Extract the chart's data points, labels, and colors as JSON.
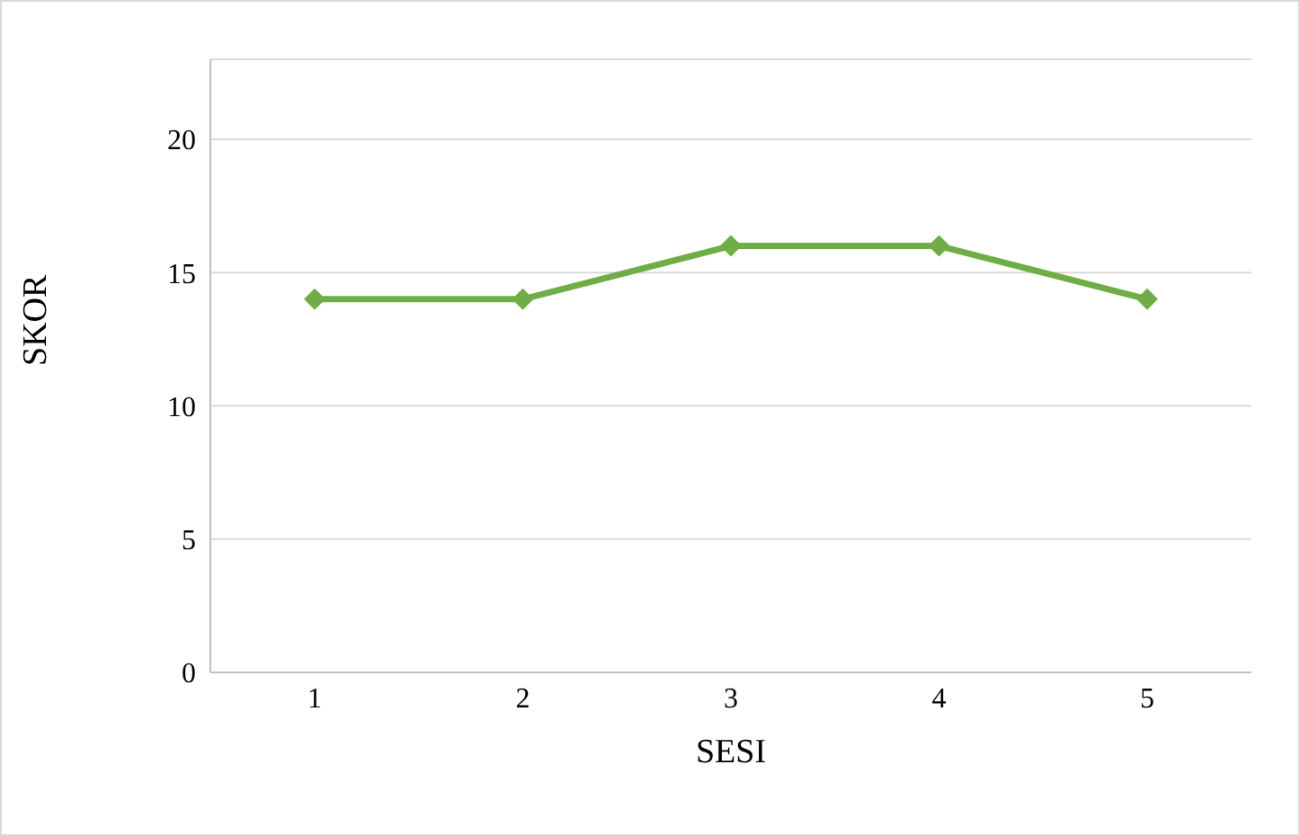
{
  "chart_data": {
    "type": "line",
    "xlabel": "SESI",
    "ylabel": "SKOR",
    "categories": [
      "1",
      "2",
      "3",
      "4",
      "5"
    ],
    "series": [
      {
        "color": "#70ad47",
        "values": [
          14,
          14,
          16,
          16,
          14
        ]
      }
    ],
    "ylim": [
      0,
      23
    ],
    "yticks": [
      0,
      5,
      10,
      15,
      20
    ],
    "grid": "y",
    "marker": "diamond",
    "line_style": "solid"
  }
}
